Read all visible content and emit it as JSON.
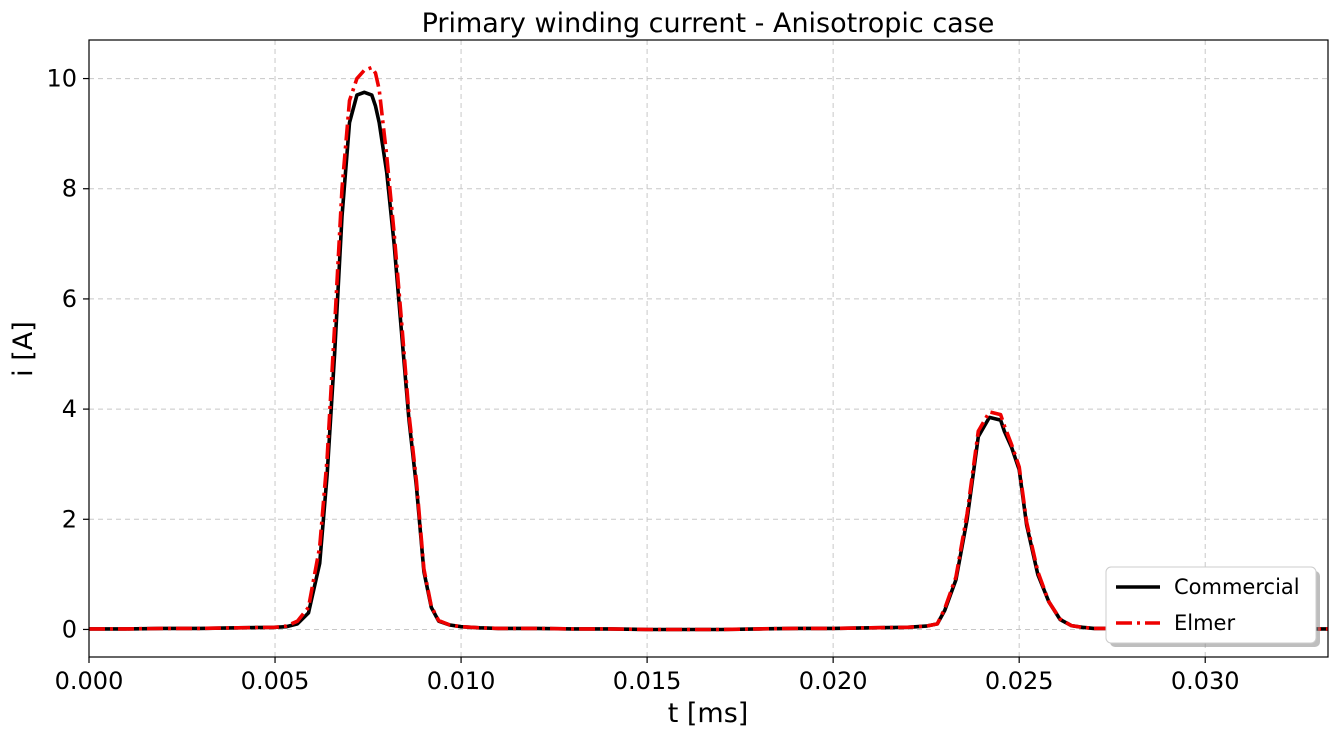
{
  "chart_data": {
    "type": "line",
    "title": "Primary winding current - Anisotropic case",
    "xlabel": "t [ms]",
    "ylabel": "i [A]",
    "xlim": [
      0,
      0.0333
    ],
    "ylim": [
      -0.5,
      10.7
    ],
    "xticks": [
      "0.000",
      "0.005",
      "0.010",
      "0.015",
      "0.020",
      "0.025",
      "0.030"
    ],
    "xtick_values": [
      0,
      0.005,
      0.01,
      0.015,
      0.02,
      0.025,
      0.03
    ],
    "yticks": [
      "0",
      "2",
      "4",
      "6",
      "8",
      "10"
    ],
    "ytick_values": [
      0,
      2,
      4,
      6,
      8,
      10
    ],
    "grid": true,
    "legend_position": "bottom-right",
    "series": [
      {
        "name": "Commercial",
        "color": "#000000",
        "style": "solid",
        "x": [
          0,
          0.001,
          0.002,
          0.003,
          0.004,
          0.005,
          0.0053,
          0.0056,
          0.0059,
          0.0062,
          0.0064,
          0.0066,
          0.0068,
          0.007,
          0.0072,
          0.0074,
          0.0076,
          0.0077,
          0.0078,
          0.008,
          0.0082,
          0.0084,
          0.0086,
          0.0088,
          0.009,
          0.0092,
          0.0094,
          0.0097,
          0.01,
          0.0105,
          0.011,
          0.012,
          0.013,
          0.014,
          0.015,
          0.016,
          0.017,
          0.018,
          0.019,
          0.02,
          0.021,
          0.022,
          0.0225,
          0.0228,
          0.023,
          0.0233,
          0.0236,
          0.0239,
          0.0242,
          0.0245,
          0.0246,
          0.0248,
          0.025,
          0.0252,
          0.0255,
          0.0258,
          0.0261,
          0.0264,
          0.0267,
          0.027,
          0.028,
          0.029,
          0.03,
          0.031,
          0.032,
          0.0333
        ],
        "y": [
          0.01,
          0.01,
          0.02,
          0.02,
          0.03,
          0.04,
          0.05,
          0.1,
          0.3,
          1.2,
          2.8,
          5.0,
          7.5,
          9.2,
          9.7,
          9.75,
          9.7,
          9.5,
          9.2,
          8.3,
          7.0,
          5.4,
          3.8,
          2.6,
          1.05,
          0.4,
          0.15,
          0.08,
          0.05,
          0.03,
          0.02,
          0.02,
          0.01,
          0.01,
          0.0,
          0.0,
          0.0,
          0.01,
          0.02,
          0.02,
          0.03,
          0.04,
          0.06,
          0.1,
          0.35,
          0.9,
          2.0,
          3.5,
          3.85,
          3.8,
          3.6,
          3.3,
          2.9,
          1.9,
          1.0,
          0.5,
          0.18,
          0.07,
          0.04,
          0.02,
          0.02,
          0.01,
          0.01,
          0.01,
          0.01,
          0.01
        ]
      },
      {
        "name": "Elmer",
        "color": "#ee0000",
        "style": "dashdot",
        "x": [
          0,
          0.001,
          0.002,
          0.003,
          0.004,
          0.005,
          0.0053,
          0.0056,
          0.0059,
          0.0062,
          0.0064,
          0.0066,
          0.0068,
          0.007,
          0.0072,
          0.0074,
          0.0076,
          0.0077,
          0.0078,
          0.008,
          0.0082,
          0.0084,
          0.0086,
          0.0088,
          0.009,
          0.0092,
          0.0094,
          0.0097,
          0.01,
          0.0105,
          0.011,
          0.012,
          0.013,
          0.014,
          0.015,
          0.016,
          0.017,
          0.018,
          0.019,
          0.02,
          0.021,
          0.022,
          0.0225,
          0.0228,
          0.023,
          0.0233,
          0.0236,
          0.0239,
          0.0242,
          0.0245,
          0.0246,
          0.0248,
          0.025,
          0.0252,
          0.0255,
          0.0258,
          0.0261,
          0.0264,
          0.0267,
          0.027,
          0.028,
          0.029,
          0.03,
          0.031,
          0.032,
          0.0333
        ],
        "y": [
          0.01,
          0.01,
          0.02,
          0.02,
          0.03,
          0.04,
          0.06,
          0.15,
          0.4,
          1.5,
          3.1,
          5.5,
          8.0,
          9.6,
          10.0,
          10.15,
          10.2,
          10.1,
          9.8,
          8.6,
          7.2,
          5.6,
          3.9,
          2.7,
          1.1,
          0.42,
          0.16,
          0.08,
          0.05,
          0.03,
          0.02,
          0.02,
          0.01,
          0.01,
          0.0,
          0.0,
          0.0,
          0.01,
          0.02,
          0.02,
          0.03,
          0.04,
          0.06,
          0.1,
          0.38,
          0.95,
          2.1,
          3.6,
          3.95,
          3.9,
          3.7,
          3.35,
          2.95,
          1.95,
          1.05,
          0.5,
          0.19,
          0.07,
          0.04,
          0.02,
          0.02,
          0.01,
          0.01,
          0.01,
          0.01,
          0.01
        ]
      }
    ]
  }
}
